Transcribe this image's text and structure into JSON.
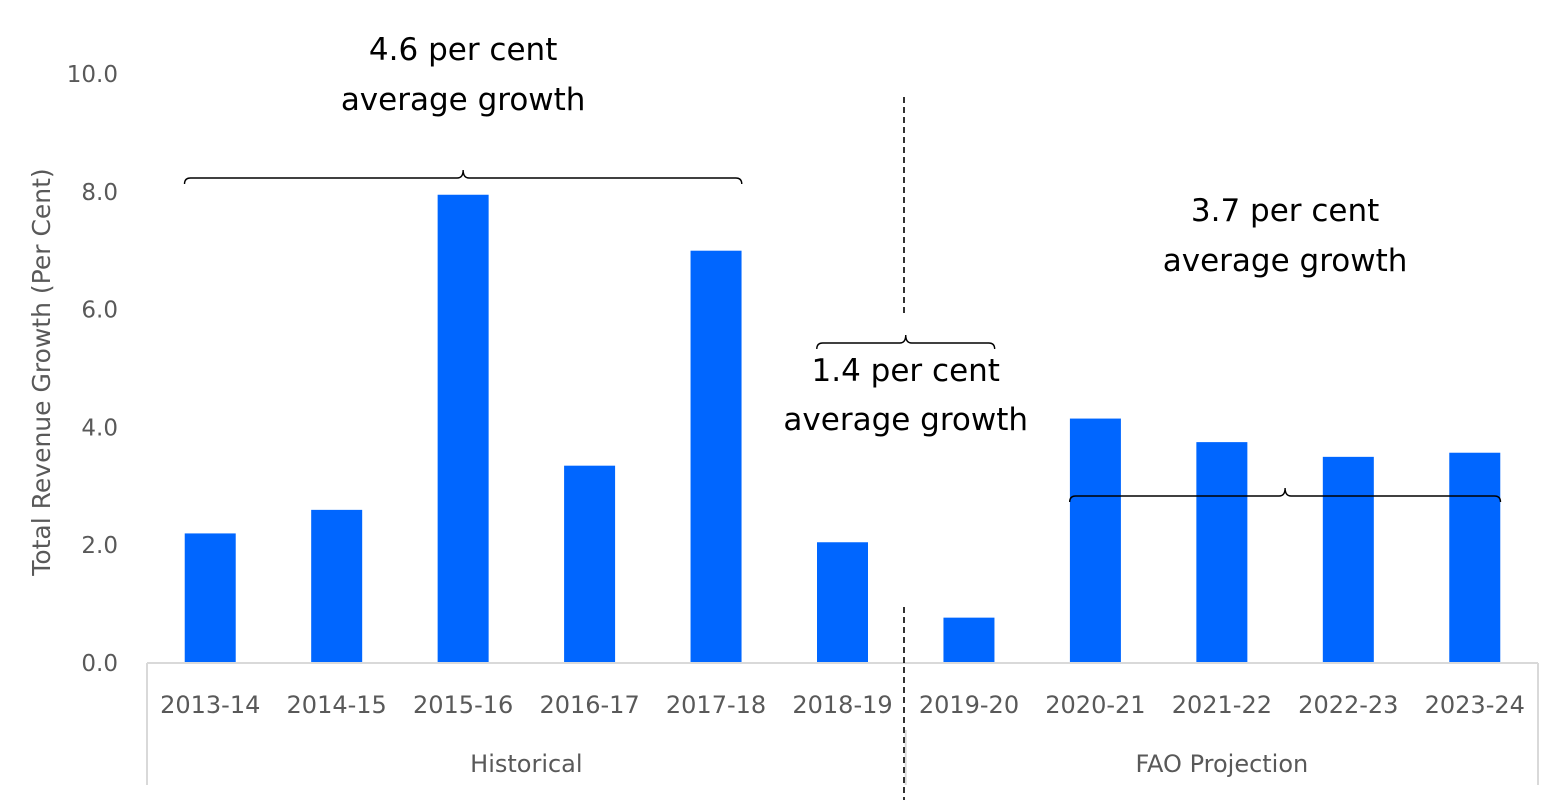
{
  "chart_data": {
    "type": "bar",
    "ylabel": "Total Revenue Growth (Per Cent)",
    "ylim": [
      0,
      10
    ],
    "yticks": [
      "0.0",
      "2.0",
      "4.0",
      "6.0",
      "8.0",
      "10.0"
    ],
    "categories": [
      "2013-14",
      "2014-15",
      "2015-16",
      "2016-17",
      "2017-18",
      "2018-19",
      "2019-20",
      "2020-21",
      "2021-22",
      "2022-23",
      "2023-24"
    ],
    "values": [
      2.2,
      2.6,
      7.95,
      3.35,
      7.0,
      2.05,
      0.77,
      4.15,
      3.75,
      3.5,
      3.57
    ],
    "bar_color": "#0066FF",
    "groups": [
      {
        "label": "Historical",
        "from": 0,
        "to": 5
      },
      {
        "label": "FAO Projection",
        "from": 6,
        "to": 10
      }
    ],
    "annotations": [
      {
        "line1": "4.6 per cent",
        "line2": "average growth",
        "from": 0,
        "to": 4
      },
      {
        "line1": "1.4 per cent",
        "line2": "average growth",
        "from": 5,
        "to": 6
      },
      {
        "line1": "3.7 per cent",
        "line2": "average growth",
        "from": 7,
        "to": 10
      }
    ],
    "grid": false,
    "legend": "none"
  }
}
